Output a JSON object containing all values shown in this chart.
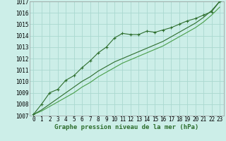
{
  "title": "Graphe pression niveau de la mer (hPa)",
  "bg_color": "#cceee8",
  "grid_color": "#aad8d0",
  "line_color_dark": "#2d6e2d",
  "line_color_light": "#4a9e4a",
  "xlim": [
    -0.5,
    23.5
  ],
  "ylim": [
    1007,
    1017
  ],
  "xticks": [
    0,
    1,
    2,
    3,
    4,
    5,
    6,
    7,
    8,
    9,
    10,
    11,
    12,
    13,
    14,
    15,
    16,
    17,
    18,
    19,
    20,
    21,
    22,
    23
  ],
  "yticks": [
    1007,
    1008,
    1009,
    1010,
    1011,
    1012,
    1013,
    1014,
    1015,
    1016,
    1017
  ],
  "series_marker": {
    "x": [
      0,
      1,
      2,
      3,
      4,
      5,
      6,
      7,
      8,
      9,
      10,
      11,
      12,
      13,
      14,
      15,
      16,
      17,
      18,
      19,
      20,
      21,
      22,
      23
    ],
    "y": [
      1007.1,
      1008.0,
      1009.0,
      1009.3,
      1010.1,
      1010.5,
      1011.2,
      1011.8,
      1012.5,
      1013.0,
      1013.8,
      1014.2,
      1014.1,
      1014.1,
      1014.4,
      1014.3,
      1014.5,
      1014.7,
      1015.0,
      1015.3,
      1015.5,
      1015.8,
      1016.1,
      1017.0
    ]
  },
  "series_smooth1": {
    "x": [
      0,
      1,
      2,
      3,
      4,
      5,
      6,
      7,
      8,
      9,
      10,
      11,
      12,
      13,
      14,
      15,
      16,
      17,
      18,
      19,
      20,
      21,
      22,
      23
    ],
    "y": [
      1007.1,
      1007.4,
      1007.8,
      1008.2,
      1008.6,
      1009.0,
      1009.5,
      1009.9,
      1010.4,
      1010.8,
      1011.2,
      1011.6,
      1011.9,
      1012.2,
      1012.5,
      1012.8,
      1013.1,
      1013.5,
      1013.9,
      1014.3,
      1014.7,
      1015.2,
      1015.8,
      1016.5
    ]
  },
  "series_smooth2": {
    "x": [
      0,
      1,
      2,
      3,
      4,
      5,
      6,
      7,
      8,
      9,
      10,
      11,
      12,
      13,
      14,
      15,
      16,
      17,
      18,
      19,
      20,
      21,
      22,
      23
    ],
    "y": [
      1007.1,
      1007.5,
      1008.0,
      1008.5,
      1009.0,
      1009.5,
      1010.0,
      1010.4,
      1010.9,
      1011.3,
      1011.7,
      1012.0,
      1012.3,
      1012.6,
      1012.9,
      1013.2,
      1013.5,
      1013.9,
      1014.3,
      1014.7,
      1015.1,
      1015.6,
      1016.2,
      1017.0
    ]
  },
  "tick_fontsize": 5.5,
  "title_fontsize": 6.5,
  "markersize": 2.8,
  "linewidth_marker": 0.8,
  "linewidth_smooth": 0.8
}
